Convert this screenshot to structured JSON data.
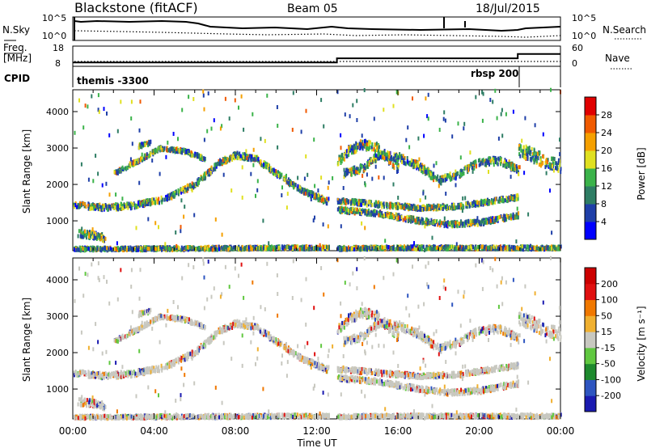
{
  "header": {
    "title": "Blackstone (fitACF)",
    "beam": "Beam 05",
    "date": "18/Jul/2015"
  },
  "chart_data": [
    {
      "type": "line",
      "panel": "noise",
      "left_label": "N.Sky",
      "left_ticks": [
        "10^5",
        "10^0"
      ],
      "right_label": "N.Search",
      "right_ticks": [
        "10^5",
        "10^0"
      ]
    },
    {
      "type": "line",
      "panel": "frequency",
      "left_label_1": "Freq.",
      "left_label_2": "[MHz]",
      "left_ticks": [
        18,
        8
      ],
      "right_label": "Nave",
      "right_ticks": [
        60,
        0
      ],
      "freq_steps": [
        {
          "t": 0.0,
          "f": 10.5
        },
        {
          "t": 13.0,
          "f": 13.2
        },
        {
          "t": 21.9,
          "f": 16.0
        }
      ]
    },
    {
      "type": "table",
      "panel": "cpid",
      "label": "CPID",
      "segments": [
        {
          "name": "themis -3300",
          "start": 0.0,
          "end": 21.9
        },
        {
          "name": "rbsp 200",
          "start": 21.9,
          "end": 24.0
        }
      ]
    },
    {
      "type": "heatmap",
      "panel": "power",
      "ylabel": "Slant Range [km]",
      "yticks": [
        1000,
        2000,
        3000,
        4000
      ],
      "ylim": [
        180,
        4600
      ],
      "colorbar_label": "Power [dB]",
      "colorbar_ticks": [
        4,
        8,
        12,
        16,
        20,
        24,
        28
      ],
      "colors": [
        "#0000ff",
        "#1f3fa8",
        "#2e7d64",
        "#3bb34a",
        "#e0e020",
        "#f5a000",
        "#f05a00",
        "#e00000"
      ]
    },
    {
      "type": "heatmap",
      "panel": "velocity",
      "ylabel": "Slant Range [km]",
      "yticks": [
        1000,
        2000,
        3000,
        4000
      ],
      "ylim": [
        180,
        4600
      ],
      "colorbar_label": "Velocity [m s⁻¹]",
      "colorbar_ticks": [
        200,
        100,
        50,
        15,
        -15,
        -50,
        -100,
        -200
      ],
      "colors": [
        "#1a1ab0",
        "#2e55c0",
        "#1e8a2e",
        "#60c840",
        "#c8c8c0",
        "#f0b030",
        "#f07800",
        "#e01010",
        "#cc0000"
      ],
      "xlabel": "Time UT",
      "xticks": [
        "00:00",
        "04:00",
        "08:00",
        "12:00",
        "16:00",
        "20:00",
        "00:00"
      ],
      "xlim": [
        0,
        24
      ]
    }
  ],
  "scatter_tracks": [
    {
      "pts": [
        [
          0.0,
          1450
        ],
        [
          1.5,
          1360
        ],
        [
          3.0,
          1420
        ],
        [
          4.5,
          1600
        ],
        [
          6.0,
          2000
        ],
        [
          7.2,
          2600
        ],
        [
          8.0,
          2800
        ],
        [
          9.0,
          2700
        ],
        [
          10.0,
          2300
        ],
        [
          11.0,
          1900
        ],
        [
          12.6,
          1500
        ]
      ],
      "w": 150
    },
    {
      "pts": [
        [
          0.0,
          220
        ],
        [
          6.0,
          240
        ],
        [
          12.6,
          260
        ]
      ],
      "w": 90
    },
    {
      "pts": [
        [
          0.2,
          650
        ],
        [
          1.0,
          600
        ],
        [
          1.6,
          520
        ]
      ],
      "w": 180
    },
    {
      "pts": [
        [
          3.2,
          3050
        ],
        [
          3.8,
          3150
        ]
      ],
      "w": 120
    },
    {
      "pts": [
        [
          2.0,
          2300
        ],
        [
          3.2,
          2650
        ],
        [
          4.3,
          3000
        ],
        [
          5.5,
          2900
        ],
        [
          6.5,
          2700
        ]
      ],
      "w": 110
    },
    {
      "pts": [
        [
          13.0,
          2600
        ],
        [
          13.5,
          2900
        ],
        [
          14.2,
          3100
        ],
        [
          15.0,
          3000
        ],
        [
          15.5,
          2700
        ],
        [
          16.0,
          2450
        ]
      ],
      "w": 240
    },
    {
      "pts": [
        [
          13.3,
          2300
        ],
        [
          14.3,
          2450
        ],
        [
          15.0,
          2800
        ],
        [
          16.0,
          2750
        ],
        [
          17.0,
          2500
        ],
        [
          18.0,
          2100
        ],
        [
          19.0,
          2300
        ],
        [
          20.0,
          2600
        ],
        [
          21.0,
          2650
        ],
        [
          21.9,
          2400
        ]
      ],
      "w": 200
    },
    {
      "pts": [
        [
          13.0,
          1550
        ],
        [
          15.0,
          1450
        ],
        [
          17.0,
          1350
        ],
        [
          19.0,
          1400
        ],
        [
          21.9,
          1650
        ]
      ],
      "w": 120
    },
    {
      "pts": [
        [
          13.0,
          1300
        ],
        [
          15.0,
          1200
        ],
        [
          17.0,
          1000
        ],
        [
          18.5,
          900
        ],
        [
          20.0,
          950
        ],
        [
          21.9,
          1150
        ]
      ],
      "w": 130
    },
    {
      "pts": [
        [
          21.9,
          2950
        ],
        [
          22.6,
          2800
        ],
        [
          23.3,
          2600
        ],
        [
          24.0,
          2500
        ]
      ],
      "w": 350
    },
    {
      "pts": [
        [
          13.0,
          240
        ],
        [
          18.0,
          260
        ],
        [
          24.0,
          250
        ]
      ],
      "w": 90
    }
  ]
}
